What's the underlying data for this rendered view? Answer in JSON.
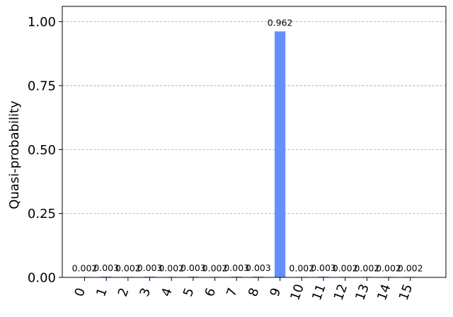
{
  "chart_data": {
    "type": "bar",
    "title": "",
    "xlabel": "",
    "ylabel": "Quasi-probability",
    "categories": [
      "0",
      "1",
      "2",
      "3",
      "4",
      "5",
      "6",
      "7",
      "8",
      "9",
      "10",
      "11",
      "12",
      "13",
      "14",
      "15"
    ],
    "values": [
      0.002,
      0.003,
      0.002,
      0.003,
      0.002,
      0.003,
      0.002,
      0.003,
      0.003,
      0.962,
      0.002,
      0.003,
      0.002,
      0.002,
      0.002,
      0.002
    ],
    "data_labels": [
      "0.002",
      "0.003",
      "0.002",
      "0.003",
      "0.002",
      "0.003",
      "0.002",
      "0.003",
      "0.003",
      "0.962",
      "0.002",
      "0.003",
      "0.002",
      "0.002",
      "0.002",
      "0.002"
    ],
    "ylim": [
      0,
      1.06
    ],
    "yticks": [
      0.0,
      0.25,
      0.5,
      0.75,
      1.0
    ],
    "ytick_labels": [
      "0.00",
      "0.25",
      "0.50",
      "0.75",
      "1.00"
    ],
    "grid": "horizontal dashed",
    "bar_color": "#648fff",
    "grid_color": "#b0b0b0"
  }
}
